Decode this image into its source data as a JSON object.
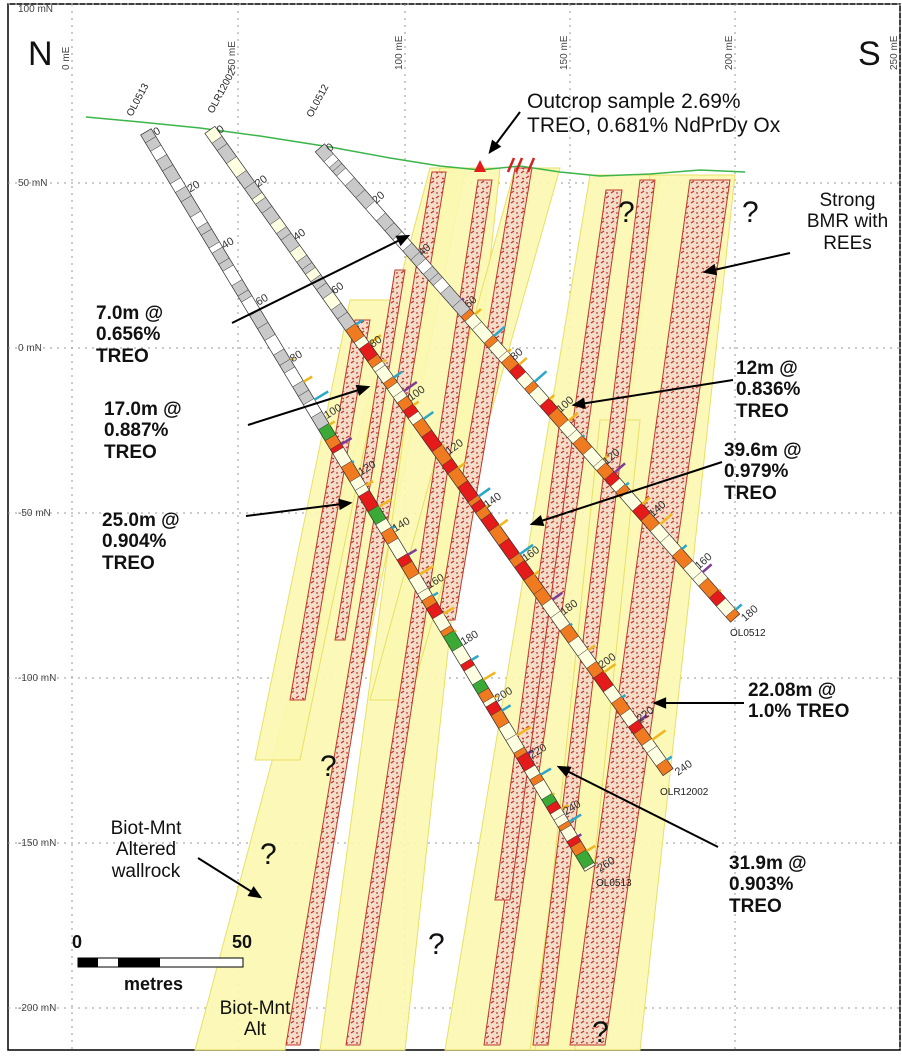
{
  "orientation": {
    "north": "N",
    "south": "S"
  },
  "x_axis_labels": [
    "0 mE",
    "50 mE",
    "100 mE",
    "150 mE",
    "200 mE",
    "250 mE"
  ],
  "y_axis_labels": [
    "100 mN",
    "50 mN",
    "0 mN",
    "-50 mN",
    "-100 mN",
    "-150 mN",
    "-200 mN"
  ],
  "holes": [
    {
      "name": "OL0513",
      "top": "OL0513",
      "bottom": "OL0513",
      "depths": [
        "0",
        "20",
        "40",
        "60",
        "80",
        "100",
        "120",
        "140",
        "160",
        "180",
        "200",
        "220",
        "240",
        "260"
      ]
    },
    {
      "name": "OLR12002",
      "top": "OLR12002",
      "bottom": "OLR12002",
      "depths": [
        "0",
        "20",
        "40",
        "60",
        "80",
        "100",
        "120",
        "140",
        "160",
        "180",
        "200",
        "220",
        "240"
      ]
    },
    {
      "name": "OL0512",
      "top": "OL0512",
      "bottom": "OL0512",
      "depths": [
        "0",
        "20",
        "40",
        "60",
        "80",
        "100",
        "120",
        "140",
        "160",
        "180"
      ]
    }
  ],
  "annotations": {
    "outcrop": [
      "Outcrop sample 2.69%",
      "TREO, 0.681% NdPrDy Ox"
    ],
    "bmr": [
      "Strong",
      "BMR with",
      "REEs"
    ],
    "i1": [
      "7.0m @",
      "0.656%",
      "TREO"
    ],
    "i2": [
      "17.0m @",
      "0.887%",
      "TREO"
    ],
    "i3": [
      "25.0m @",
      "0.904%",
      "TREO"
    ],
    "i4": [
      "12m @",
      "0.836%",
      "TREO"
    ],
    "i5": [
      "39.6m @",
      "0.979%",
      "TREO"
    ],
    "i6": [
      "22.08m @",
      "1.0% TREO"
    ],
    "i7": [
      "31.9m @",
      "0.903%",
      "TREO"
    ],
    "wallrock": [
      "Biot-Mnt",
      "Altered",
      "wallrock"
    ],
    "biot_alt": [
      "Biot-Mnt",
      "Alt"
    ]
  },
  "question_mark": "?",
  "scale_bar": {
    "start": "0",
    "end": "50",
    "unit": "metres"
  },
  "colors": {
    "alteration_fill": "#fbf7b0",
    "alteration_edge": "#e8e066",
    "bmr_dyke": "#c0392b",
    "high_grade": "#ee1111",
    "mid_grade": "#f07a20",
    "topography": "#3bb54a"
  }
}
